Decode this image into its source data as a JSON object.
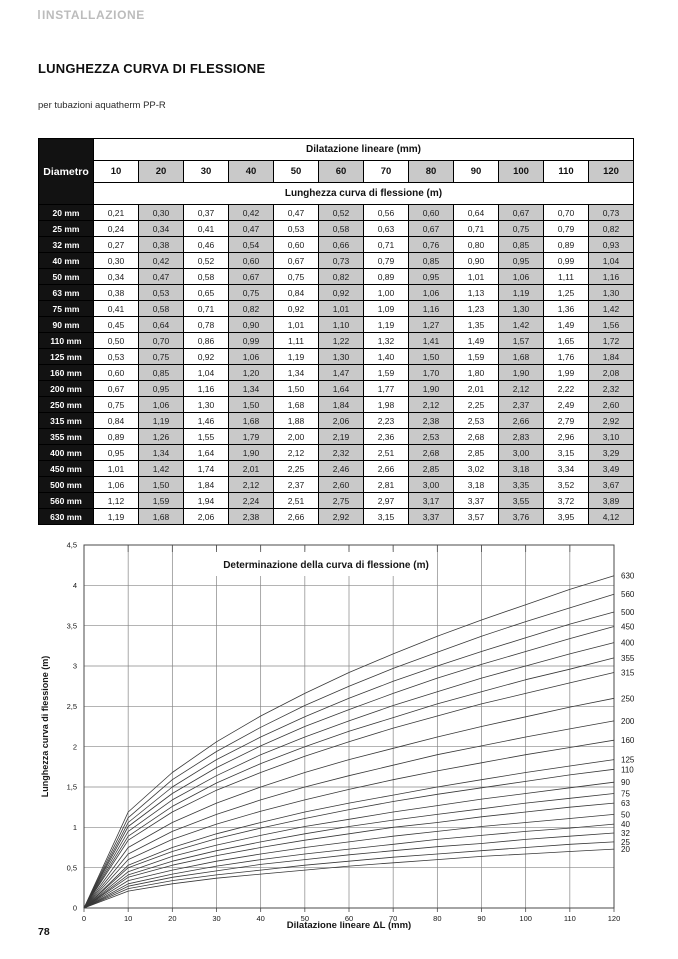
{
  "page": {
    "header": "INSTALLAZIONE",
    "title": "LUNGHEZZA CURVA DI FLESSIONE",
    "subtitle": "per tubazioni  aquatherm PP-R",
    "page_number": "78"
  },
  "table": {
    "corner_label": "Diametro",
    "col_group_header": "Dilatazione lineare  (mm)",
    "row_group_header": "Lunghezza curva di flessione  (m)",
    "columns": [
      "10",
      "20",
      "30",
      "40",
      "50",
      "60",
      "70",
      "80",
      "90",
      "100",
      "110",
      "120"
    ],
    "rows": [
      {
        "label": "20 mm",
        "values": [
          "0,21",
          "0,30",
          "0,37",
          "0,42",
          "0,47",
          "0,52",
          "0,56",
          "0,60",
          "0,64",
          "0,67",
          "0,70",
          "0,73"
        ]
      },
      {
        "label": "25 mm",
        "values": [
          "0,24",
          "0,34",
          "0,41",
          "0,47",
          "0,53",
          "0,58",
          "0,63",
          "0,67",
          "0,71",
          "0,75",
          "0,79",
          "0,82"
        ]
      },
      {
        "label": "32 mm",
        "values": [
          "0,27",
          "0,38",
          "0,46",
          "0,54",
          "0,60",
          "0,66",
          "0,71",
          "0,76",
          "0,80",
          "0,85",
          "0,89",
          "0,93"
        ]
      },
      {
        "label": "40 mm",
        "values": [
          "0,30",
          "0,42",
          "0,52",
          "0,60",
          "0,67",
          "0,73",
          "0,79",
          "0,85",
          "0,90",
          "0,95",
          "0,99",
          "1,04"
        ]
      },
      {
        "label": "50 mm",
        "values": [
          "0,34",
          "0,47",
          "0,58",
          "0,67",
          "0,75",
          "0,82",
          "0,89",
          "0,95",
          "1,01",
          "1,06",
          "1,11",
          "1,16"
        ]
      },
      {
        "label": "63 mm",
        "values": [
          "0,38",
          "0,53",
          "0,65",
          "0,75",
          "0,84",
          "0,92",
          "1,00",
          "1,06",
          "1,13",
          "1,19",
          "1,25",
          "1,30"
        ]
      },
      {
        "label": "75 mm",
        "values": [
          "0,41",
          "0,58",
          "0,71",
          "0,82",
          "0,92",
          "1,01",
          "1,09",
          "1,16",
          "1,23",
          "1,30",
          "1,36",
          "1,42"
        ]
      },
      {
        "label": "90 mm",
        "values": [
          "0,45",
          "0,64",
          "0,78",
          "0,90",
          "1,01",
          "1,10",
          "1,19",
          "1,27",
          "1,35",
          "1,42",
          "1,49",
          "1,56"
        ]
      },
      {
        "label": "110 mm",
        "values": [
          "0,50",
          "0,70",
          "0,86",
          "0,99",
          "1,11",
          "1,22",
          "1,32",
          "1,41",
          "1,49",
          "1,57",
          "1,65",
          "1,72"
        ]
      },
      {
        "label": "125 mm",
        "values": [
          "0,53",
          "0,75",
          "0,92",
          "1,06",
          "1,19",
          "1,30",
          "1,40",
          "1,50",
          "1,59",
          "1,68",
          "1,76",
          "1,84"
        ]
      },
      {
        "label": "160 mm",
        "values": [
          "0,60",
          "0,85",
          "1,04",
          "1,20",
          "1,34",
          "1,47",
          "1,59",
          "1,70",
          "1,80",
          "1,90",
          "1,99",
          "2,08"
        ]
      },
      {
        "label": "200 mm",
        "values": [
          "0,67",
          "0,95",
          "1,16",
          "1,34",
          "1,50",
          "1,64",
          "1,77",
          "1,90",
          "2,01",
          "2,12",
          "2,22",
          "2,32"
        ]
      },
      {
        "label": "250 mm",
        "values": [
          "0,75",
          "1,06",
          "1,30",
          "1,50",
          "1,68",
          "1,84",
          "1,98",
          "2,12",
          "2,25",
          "2,37",
          "2,49",
          "2,60"
        ]
      },
      {
        "label": "315 mm",
        "values": [
          "0,84",
          "1,19",
          "1,46",
          "1,68",
          "1,88",
          "2,06",
          "2,23",
          "2,38",
          "2,53",
          "2,66",
          "2,79",
          "2,92"
        ]
      },
      {
        "label": "355 mm",
        "values": [
          "0,89",
          "1,26",
          "1,55",
          "1,79",
          "2,00",
          "2,19",
          "2,36",
          "2,53",
          "2,68",
          "2,83",
          "2,96",
          "3,10"
        ]
      },
      {
        "label": "400 mm",
        "values": [
          "0,95",
          "1,34",
          "1,64",
          "1,90",
          "2,12",
          "2,32",
          "2,51",
          "2,68",
          "2,85",
          "3,00",
          "3,15",
          "3,29"
        ]
      },
      {
        "label": "450 mm",
        "values": [
          "1,01",
          "1,42",
          "1,74",
          "2,01",
          "2,25",
          "2,46",
          "2,66",
          "2,85",
          "3,02",
          "3,18",
          "3,34",
          "3,49"
        ]
      },
      {
        "label": "500 mm",
        "values": [
          "1,06",
          "1,50",
          "1,84",
          "2,12",
          "2,37",
          "2,60",
          "2,81",
          "3,00",
          "3,18",
          "3,35",
          "3,52",
          "3,67"
        ]
      },
      {
        "label": "560 mm",
        "values": [
          "1,12",
          "1,59",
          "1,94",
          "2,24",
          "2,51",
          "2,75",
          "2,97",
          "3,17",
          "3,37",
          "3,55",
          "3,72",
          "3,89"
        ]
      },
      {
        "label": "630 mm",
        "values": [
          "1,19",
          "1,68",
          "2,06",
          "2,38",
          "2,66",
          "2,92",
          "3,15",
          "3,37",
          "3,57",
          "3,76",
          "3,95",
          "4,12"
        ]
      }
    ]
  },
  "chart_data": {
    "type": "line",
    "title": "Determinazione della curva di flessione  (m)",
    "xlabel": "Dilatazione lineare ΔL (mm)",
    "ylabel": "Lunghezza curva di flessione  (m)",
    "x": [
      0,
      10,
      20,
      30,
      40,
      50,
      60,
      70,
      80,
      90,
      100,
      110,
      120
    ],
    "xlim": [
      0,
      120
    ],
    "ylim": [
      0,
      4.5
    ],
    "x_tick_labels": [
      "0",
      "10",
      "20",
      "30",
      "40",
      "50",
      "60",
      "70",
      "80",
      "90",
      "100",
      "110",
      "120"
    ],
    "y_ticks": [
      0,
      0.5,
      1,
      1.5,
      2,
      2.5,
      3,
      3.5,
      4,
      4.5
    ],
    "y_tick_labels": [
      "0",
      "0,5",
      "1",
      "1,5",
      "2",
      "2,5",
      "3",
      "3,5",
      "4",
      "4,5"
    ],
    "grid": true,
    "legend_position": "right-edge-labels",
    "series": [
      {
        "name": "630",
        "values": [
          0,
          1.19,
          1.68,
          2.06,
          2.38,
          2.66,
          2.92,
          3.15,
          3.37,
          3.57,
          3.76,
          3.95,
          4.12
        ]
      },
      {
        "name": "560",
        "values": [
          0,
          1.12,
          1.59,
          1.94,
          2.24,
          2.51,
          2.75,
          2.97,
          3.17,
          3.37,
          3.55,
          3.72,
          3.89
        ]
      },
      {
        "name": "500",
        "values": [
          0,
          1.06,
          1.5,
          1.84,
          2.12,
          2.37,
          2.6,
          2.81,
          3.0,
          3.18,
          3.35,
          3.52,
          3.67
        ]
      },
      {
        "name": "450",
        "values": [
          0,
          1.01,
          1.42,
          1.74,
          2.01,
          2.25,
          2.46,
          2.66,
          2.85,
          3.02,
          3.18,
          3.34,
          3.49
        ]
      },
      {
        "name": "400",
        "values": [
          0,
          0.95,
          1.34,
          1.64,
          1.9,
          2.12,
          2.32,
          2.51,
          2.68,
          2.85,
          3.0,
          3.15,
          3.29
        ]
      },
      {
        "name": "355",
        "values": [
          0,
          0.89,
          1.26,
          1.55,
          1.79,
          2.0,
          2.19,
          2.36,
          2.53,
          2.68,
          2.83,
          2.96,
          3.1
        ]
      },
      {
        "name": "315",
        "values": [
          0,
          0.84,
          1.19,
          1.46,
          1.68,
          1.88,
          2.06,
          2.23,
          2.38,
          2.53,
          2.66,
          2.79,
          2.92
        ]
      },
      {
        "name": "250",
        "values": [
          0,
          0.75,
          1.06,
          1.3,
          1.5,
          1.68,
          1.84,
          1.98,
          2.12,
          2.25,
          2.37,
          2.49,
          2.6
        ]
      },
      {
        "name": "200",
        "values": [
          0,
          0.67,
          0.95,
          1.16,
          1.34,
          1.5,
          1.64,
          1.77,
          1.9,
          2.01,
          2.12,
          2.22,
          2.32
        ]
      },
      {
        "name": "160",
        "values": [
          0,
          0.6,
          0.85,
          1.04,
          1.2,
          1.34,
          1.47,
          1.59,
          1.7,
          1.8,
          1.9,
          1.99,
          2.08
        ]
      },
      {
        "name": "125",
        "values": [
          0,
          0.53,
          0.75,
          0.92,
          1.06,
          1.19,
          1.3,
          1.4,
          1.5,
          1.59,
          1.68,
          1.76,
          1.84
        ]
      },
      {
        "name": "110",
        "values": [
          0,
          0.5,
          0.7,
          0.86,
          0.99,
          1.11,
          1.22,
          1.32,
          1.41,
          1.49,
          1.57,
          1.65,
          1.72
        ]
      },
      {
        "name": "90",
        "values": [
          0,
          0.45,
          0.64,
          0.78,
          0.9,
          1.01,
          1.1,
          1.19,
          1.27,
          1.35,
          1.42,
          1.49,
          1.56
        ]
      },
      {
        "name": "75",
        "values": [
          0,
          0.41,
          0.58,
          0.71,
          0.82,
          0.92,
          1.01,
          1.09,
          1.16,
          1.23,
          1.3,
          1.36,
          1.42
        ]
      },
      {
        "name": "63",
        "values": [
          0,
          0.38,
          0.53,
          0.65,
          0.75,
          0.84,
          0.92,
          1.0,
          1.06,
          1.13,
          1.19,
          1.25,
          1.3
        ]
      },
      {
        "name": "50",
        "values": [
          0,
          0.34,
          0.47,
          0.58,
          0.67,
          0.75,
          0.82,
          0.89,
          0.95,
          1.01,
          1.06,
          1.11,
          1.16
        ]
      },
      {
        "name": "40",
        "values": [
          0,
          0.3,
          0.42,
          0.52,
          0.6,
          0.67,
          0.73,
          0.79,
          0.85,
          0.9,
          0.95,
          0.99,
          1.04
        ]
      },
      {
        "name": "32",
        "values": [
          0,
          0.27,
          0.38,
          0.46,
          0.54,
          0.6,
          0.66,
          0.71,
          0.76,
          0.8,
          0.85,
          0.89,
          0.93
        ]
      },
      {
        "name": "25",
        "values": [
          0,
          0.24,
          0.34,
          0.41,
          0.47,
          0.53,
          0.58,
          0.63,
          0.67,
          0.71,
          0.75,
          0.79,
          0.82
        ]
      },
      {
        "name": "20",
        "values": [
          0,
          0.21,
          0.3,
          0.37,
          0.42,
          0.47,
          0.52,
          0.56,
          0.6,
          0.64,
          0.67,
          0.7,
          0.73
        ]
      }
    ]
  },
  "colors": {
    "header_gray": "#bcbcbc",
    "cell_gray": "#c9c9c9",
    "cell_black": "#121212",
    "grid_line": "#868686",
    "plot_border": "#4a4a4a",
    "curve": "#383838"
  }
}
